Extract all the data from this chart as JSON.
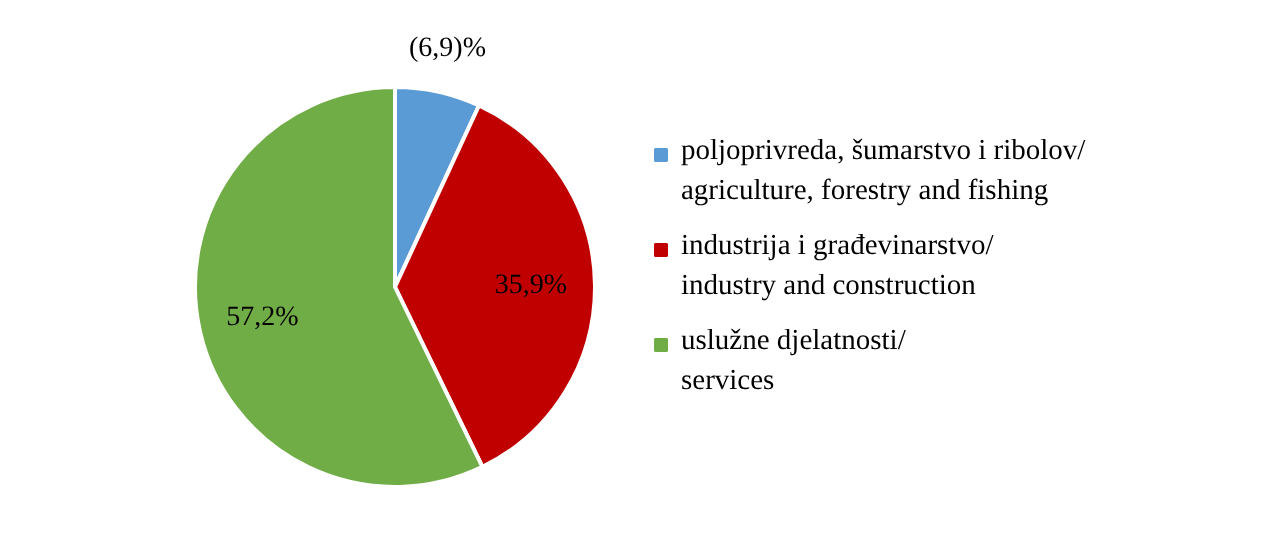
{
  "chart_data": {
    "type": "pie",
    "categories": [
      "poljoprivreda, šumarstvo i ribolov/\nagriculture, forestry and fishing",
      "industrija i građevinarstvo/\nindustry and construction",
      "uslužne djelatnosti/\nservices"
    ],
    "values": [
      6.9,
      35.9,
      57.2
    ],
    "value_labels": [
      "(6,9)%",
      "35,9%",
      "57,2%"
    ],
    "colors": [
      "#5b9bd5",
      "#c00000",
      "#70ad47"
    ],
    "legend": "right"
  }
}
